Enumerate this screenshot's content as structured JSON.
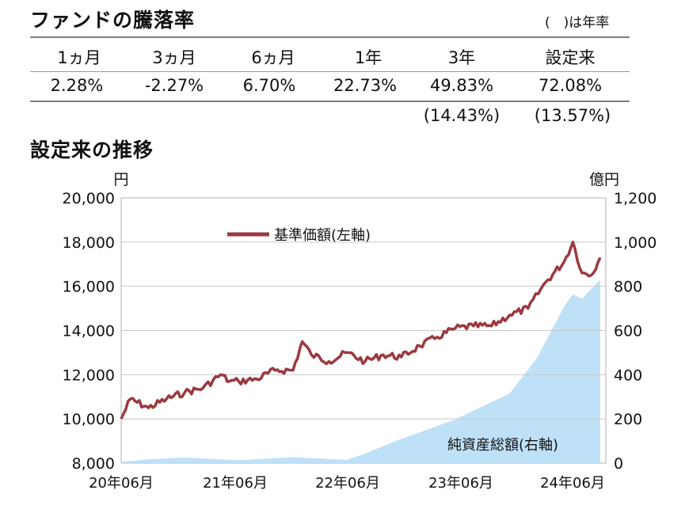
{
  "performance": {
    "title": "ファンドの騰落率",
    "note": "(　)は年率",
    "headers": [
      "1ヵ月",
      "3ヵ月",
      "6ヵ月",
      "1年",
      "3年",
      "設定来"
    ],
    "values": [
      "2.28%",
      "-2.27%",
      "6.70%",
      "22.73%",
      "49.83%",
      "72.08%"
    ],
    "annualized": [
      "",
      "",
      "",
      "",
      "(14.43%)",
      "(13.57%)"
    ]
  },
  "history": {
    "title": "設定来の推移"
  },
  "chart_data": {
    "type": "line",
    "left_unit": "円",
    "right_unit": "億円",
    "x_ticks": [
      "20年06月",
      "21年06月",
      "22年06月",
      "23年06月",
      "24年06月"
    ],
    "ylim_left": [
      8000,
      20000
    ],
    "yticks_left": [
      "20,000",
      "18,000",
      "16,000",
      "14,000",
      "12,000",
      "10,000",
      "8,000"
    ],
    "ylim_right": [
      0,
      1200
    ],
    "yticks_right": [
      "1,200",
      "1,000",
      "800",
      "600",
      "400",
      "200",
      "0"
    ],
    "grid": true,
    "series": [
      {
        "name": "基準価額(左軸)",
        "axis": "left",
        "kind": "line",
        "color": "#9b3a3f",
        "x": [
          "2020-05",
          "2020-06",
          "2020-08",
          "2020-10",
          "2020-12",
          "2021-02",
          "2021-04",
          "2021-05",
          "2021-06",
          "2021-08",
          "2021-10",
          "2021-12",
          "2022-01",
          "2022-02",
          "2022-04",
          "2022-06",
          "2022-08",
          "2022-10",
          "2022-12",
          "2023-02",
          "2023-04",
          "2023-06",
          "2023-08",
          "2023-10",
          "2023-12",
          "2024-02",
          "2024-04",
          "2024-06",
          "2024-07",
          "2024-08",
          "2024-09",
          "2024-10"
        ],
        "values": [
          10000,
          10900,
          10500,
          10900,
          11200,
          11400,
          12000,
          11700,
          11700,
          11800,
          12200,
          12200,
          13500,
          12900,
          12600,
          13000,
          12600,
          12900,
          12800,
          13300,
          13700,
          14100,
          14200,
          14200,
          14700,
          15000,
          16200,
          17100,
          18000,
          16600,
          16500,
          17300
        ]
      },
      {
        "name": "純資産総額(右軸)",
        "axis": "right",
        "kind": "area",
        "color": "#bfe1f7",
        "x": [
          "2020-05",
          "2020-08",
          "2020-12",
          "2021-06",
          "2021-12",
          "2022-06",
          "2022-08",
          "2022-12",
          "2023-06",
          "2023-12",
          "2024-03",
          "2024-06",
          "2024-07",
          "2024-08",
          "2024-10"
        ],
        "values": [
          5,
          20,
          20,
          20,
          20,
          20,
          40,
          110,
          200,
          310,
          480,
          700,
          770,
          740,
          830
        ]
      }
    ]
  }
}
